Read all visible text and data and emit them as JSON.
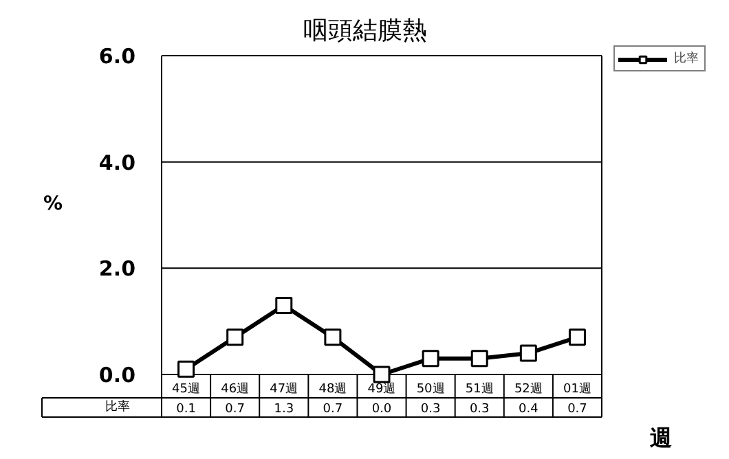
{
  "chart_data": {
    "type": "line",
    "title": "咽頭結膜熱",
    "ylabel": "%",
    "xlabel": "週",
    "categories": [
      "45週",
      "46週",
      "47週",
      "48週",
      "49週",
      "50週",
      "51週",
      "52週",
      "01週"
    ],
    "series": [
      {
        "name": "比率",
        "color": "#000000",
        "values": [
          0.1,
          0.7,
          1.3,
          0.7,
          0.0,
          0.3,
          0.3,
          0.4,
          0.7
        ],
        "value_labels": [
          "0.1",
          "0.7",
          "1.3",
          "0.7",
          "0.0",
          "0.3",
          "0.3",
          "0.4",
          "0.7"
        ]
      }
    ],
    "ylim": [
      0,
      6
    ],
    "yticks": [
      {
        "value": 0,
        "label": "0.0"
      },
      {
        "value": 2,
        "label": "2.0"
      },
      {
        "value": 4,
        "label": "4.0"
      },
      {
        "value": 6,
        "label": "6.0"
      }
    ],
    "grid": "y",
    "legend": "top right",
    "marker": "square",
    "line_style": "solid",
    "data_labels": true
  }
}
